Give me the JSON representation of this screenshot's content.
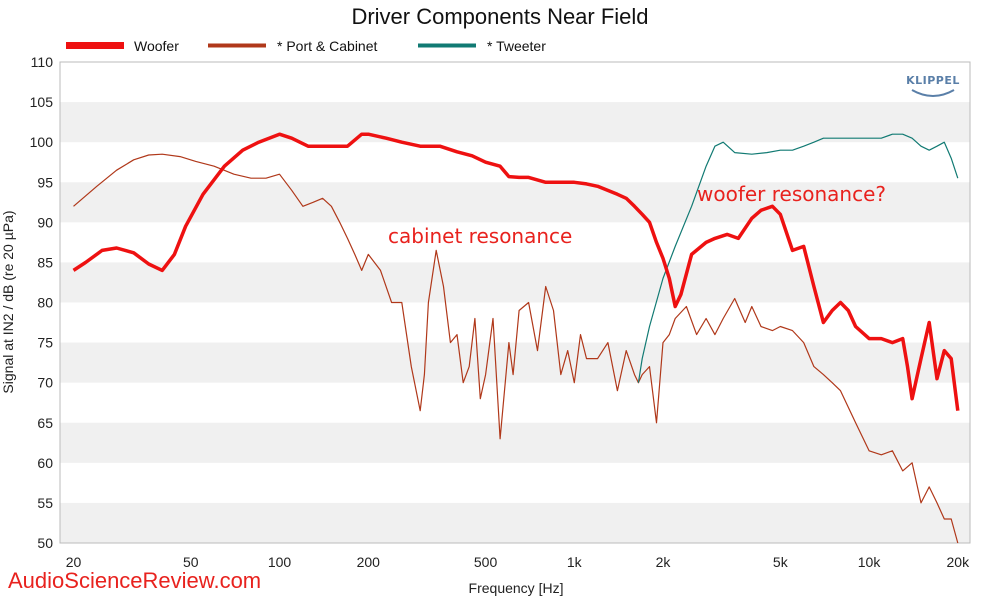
{
  "chart_data": {
    "type": "line",
    "title": "Driver Components Near Field",
    "xlabel": "Frequency [Hz]",
    "ylabel": "Signal at IN2 / dB (re 20 µPa)",
    "x_scale": "log",
    "xlim": [
      18,
      22000
    ],
    "ylim": [
      50,
      110
    ],
    "x_ticks": [
      20,
      50,
      100,
      200,
      500,
      1000,
      2000,
      5000,
      10000,
      20000
    ],
    "x_tick_labels": [
      "20",
      "50",
      "100",
      "200",
      "500",
      "1k",
      "2k",
      "5k",
      "10k",
      "20k"
    ],
    "y_ticks": [
      50,
      55,
      60,
      65,
      70,
      75,
      80,
      85,
      90,
      95,
      100,
      105,
      110
    ],
    "grid": "horizontal bands",
    "legend_position": "top-left",
    "series": [
      {
        "name": "Woofer",
        "color": "#ee1111",
        "x": [
          20,
          22,
          25,
          28,
          32,
          36,
          40,
          44,
          48,
          55,
          65,
          75,
          85,
          100,
          110,
          125,
          150,
          170,
          190,
          200,
          230,
          260,
          300,
          350,
          400,
          450,
          500,
          560,
          600,
          650,
          700,
          800,
          900,
          1000,
          1100,
          1200,
          1400,
          1500,
          1600,
          1700,
          1800,
          1900,
          2000,
          2100,
          2200,
          2300,
          2500,
          2800,
          3000,
          3300,
          3600,
          4000,
          4300,
          4700,
          5000,
          5500,
          6000,
          6500,
          7000,
          7500,
          8000,
          8500,
          9000,
          10000,
          11000,
          12000,
          13000,
          13500,
          14000,
          15000,
          16000,
          17000,
          18000,
          19000,
          20000
        ],
        "y": [
          84,
          85,
          86.5,
          86.8,
          86.2,
          84.8,
          84,
          86,
          89.5,
          93.5,
          97,
          99,
          100,
          101,
          100.5,
          99.5,
          99.5,
          99.5,
          101,
          101,
          100.5,
          100,
          99.5,
          99.5,
          98.8,
          98.3,
          97.5,
          97,
          95.7,
          95.6,
          95.6,
          95,
          95,
          95,
          94.8,
          94.5,
          93.5,
          93,
          92,
          91,
          90,
          87.5,
          85.5,
          83,
          79.5,
          81,
          86,
          87.5,
          88,
          88.5,
          88,
          90.5,
          91.5,
          92,
          91,
          86.5,
          87,
          82,
          77.5,
          79,
          80,
          79,
          77,
          75.5,
          75.5,
          75,
          75.5,
          72,
          68,
          73,
          77.5,
          70.5,
          74,
          73,
          66.5
        ]
      },
      {
        "name": "* Port & Cabinet",
        "color": "#b0381a",
        "x": [
          20,
          24,
          28,
          32,
          36,
          40,
          46,
          52,
          60,
          70,
          80,
          90,
          100,
          110,
          120,
          130,
          140,
          150,
          160,
          170,
          180,
          190,
          200,
          220,
          240,
          260,
          280,
          300,
          310,
          320,
          340,
          360,
          380,
          400,
          420,
          440,
          460,
          480,
          500,
          530,
          560,
          600,
          620,
          650,
          700,
          750,
          800,
          850,
          900,
          950,
          1000,
          1050,
          1100,
          1200,
          1300,
          1400,
          1500,
          1600,
          1650,
          1700,
          1800,
          1900,
          2000,
          2100,
          2200,
          2400,
          2600,
          2800,
          3000,
          3200,
          3500,
          3800,
          4000,
          4300,
          4700,
          5000,
          5500,
          6000,
          6500,
          7000,
          7500,
          8000,
          9000,
          10000,
          11000,
          12000,
          13000,
          14000,
          15000,
          16000,
          17000,
          18000,
          19000,
          20000
        ],
        "y": [
          92,
          94.5,
          96.5,
          97.8,
          98.4,
          98.5,
          98.2,
          97.6,
          97,
          96,
          95.5,
          95.5,
          96,
          94,
          92,
          92.5,
          93,
          92,
          90,
          88,
          86,
          84,
          86,
          84,
          80,
          80,
          72,
          66.5,
          71,
          80,
          86.5,
          82,
          75,
          76,
          70,
          72,
          78,
          68,
          71,
          78,
          63,
          75,
          71,
          79,
          80,
          74,
          82,
          79,
          71,
          74,
          70,
          76,
          73,
          73,
          75,
          69,
          74,
          71,
          70,
          71,
          72,
          65,
          75,
          76,
          78,
          79.5,
          76,
          78,
          76,
          78,
          80.5,
          77.5,
          79.5,
          77,
          76.5,
          77,
          76.5,
          75,
          72,
          71,
          70,
          69,
          65,
          61.5,
          61,
          61.5,
          59,
          60,
          55,
          57,
          55,
          53,
          53,
          50
        ]
      },
      {
        "name": "* Tweeter",
        "color": "#117a73",
        "x": [
          1650,
          1700,
          1800,
          2000,
          2200,
          2500,
          2800,
          3000,
          3200,
          3500,
          4000,
          4500,
          5000,
          5500,
          6000,
          6500,
          7000,
          8000,
          9000,
          10000,
          11000,
          12000,
          13000,
          14000,
          15000,
          16000,
          17000,
          18000,
          19000,
          20000
        ],
        "y": [
          70,
          73,
          77,
          83,
          87,
          92,
          97,
          99.5,
          100,
          98.7,
          98.5,
          98.7,
          99,
          99,
          99.5,
          100,
          100.5,
          100.5,
          100.5,
          100.5,
          100.5,
          101,
          101,
          100.5,
          99.5,
          99,
          99.5,
          100,
          98,
          95.5
        ]
      }
    ],
    "annotations": [
      "cabinet resonance",
      "woofer resonance?"
    ]
  },
  "logo": "KLIPPEL",
  "watermark": "AudioScienceReview.com"
}
